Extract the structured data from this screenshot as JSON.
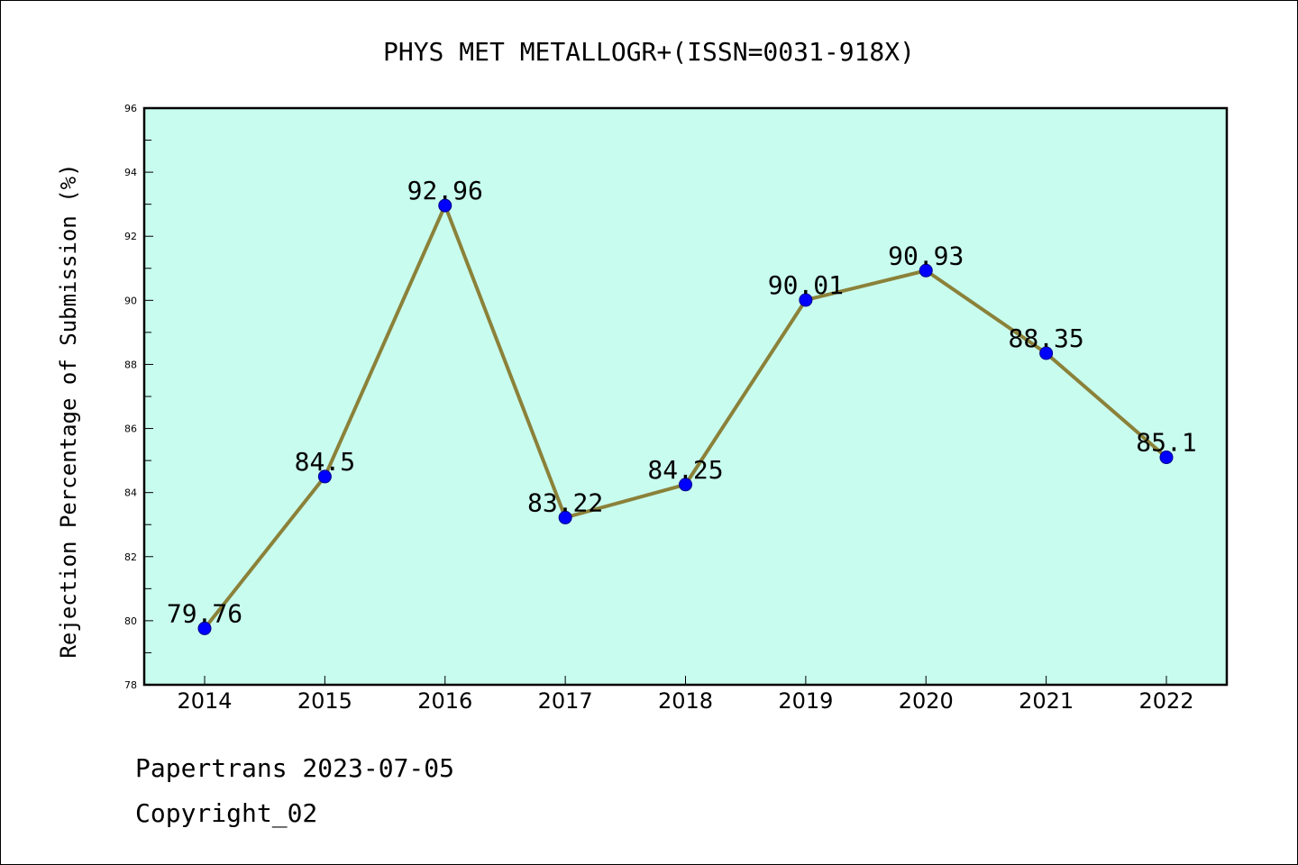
{
  "chart_data": {
    "type": "line",
    "title": "PHYS MET METALLOGR+(ISSN=0031-918X)",
    "xlabel": "",
    "ylabel": "Rejection Percentage of Submission (%)",
    "x": [
      "2014",
      "2015",
      "2016",
      "2017",
      "2018",
      "2019",
      "2020",
      "2021",
      "2022"
    ],
    "series": [
      {
        "values": [
          79.76,
          84.5,
          92.96,
          83.22,
          84.25,
          90.01,
          90.93,
          88.35,
          85.1
        ],
        "labels": [
          "79.76",
          "84.5",
          "92.96",
          "83.22",
          "84.25",
          "90.01",
          "90.93",
          "88.35",
          "85.1"
        ],
        "line_color": "#8b8139",
        "marker_color": "#0000ff"
      }
    ],
    "ylim": [
      78,
      96
    ],
    "yticks": [
      "78",
      "80",
      "82",
      "84",
      "86",
      "88",
      "90",
      "92",
      "94",
      "96"
    ],
    "plot_background": "#c8fcee",
    "grid": false,
    "legend": "none"
  },
  "footer": {
    "source": "Papertrans 2023-07-05",
    "copyright": "Copyright_02"
  }
}
